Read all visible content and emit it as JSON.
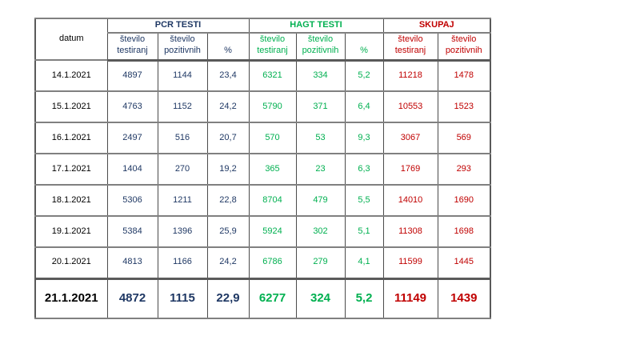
{
  "colors": {
    "pcr": "#1f3864",
    "hagt": "#00b050",
    "skupaj": "#c00000",
    "grid_horizontal": "#808080",
    "grid_vertical": "#4a4a4a"
  },
  "chart_data": {
    "type": "table",
    "header": {
      "datum_label": "datum",
      "groups": [
        {
          "key": "pcr",
          "label": "PCR TESTI",
          "color": "#1f3864",
          "columns": [
            "število testiranj",
            "število pozitivnih",
            "%"
          ]
        },
        {
          "key": "hagt",
          "label": "HAGT TESTI",
          "color": "#00b050",
          "columns": [
            "število testiranj",
            "število pozitivnih",
            "%"
          ]
        },
        {
          "key": "skupaj",
          "label": "SKUPAJ",
          "color": "#c00000",
          "columns": [
            "število testiranj",
            "število pozitivnih"
          ]
        }
      ]
    },
    "columns": [
      "datum",
      "PCR število testiranj",
      "PCR število pozitivnih",
      "PCR %",
      "HAGT število testiranj",
      "HAGT število pozitivnih",
      "HAGT %",
      "SKUPAJ število testiranj",
      "SKUPAJ število pozitivnih"
    ],
    "rows": [
      {
        "date": "14.1.2021",
        "pcr": [
          "4897",
          "1144",
          "23,4"
        ],
        "hagt": [
          "6321",
          "334",
          "5,2"
        ],
        "skupaj": [
          "11218",
          "1478"
        ],
        "total": false
      },
      {
        "date": "15.1.2021",
        "pcr": [
          "4763",
          "1152",
          "24,2"
        ],
        "hagt": [
          "5790",
          "371",
          "6,4"
        ],
        "skupaj": [
          "10553",
          "1523"
        ],
        "total": false
      },
      {
        "date": "16.1.2021",
        "pcr": [
          "2497",
          "516",
          "20,7"
        ],
        "hagt": [
          "570",
          "53",
          "9,3"
        ],
        "skupaj": [
          "3067",
          "569"
        ],
        "total": false
      },
      {
        "date": "17.1.2021",
        "pcr": [
          "1404",
          "270",
          "19,2"
        ],
        "hagt": [
          "365",
          "23",
          "6,3"
        ],
        "skupaj": [
          "1769",
          "293"
        ],
        "total": false
      },
      {
        "date": "18.1.2021",
        "pcr": [
          "5306",
          "1211",
          "22,8"
        ],
        "hagt": [
          "8704",
          "479",
          "5,5"
        ],
        "skupaj": [
          "14010",
          "1690"
        ],
        "total": false
      },
      {
        "date": "19.1.2021",
        "pcr": [
          "5384",
          "1396",
          "25,9"
        ],
        "hagt": [
          "5924",
          "302",
          "5,1"
        ],
        "skupaj": [
          "11308",
          "1698"
        ],
        "total": false
      },
      {
        "date": "20.1.2021",
        "pcr": [
          "4813",
          "1166",
          "24,2"
        ],
        "hagt": [
          "6786",
          "279",
          "4,1"
        ],
        "skupaj": [
          "11599",
          "1445"
        ],
        "total": false
      },
      {
        "date": "21.1.2021",
        "pcr": [
          "4872",
          "1115",
          "22,9"
        ],
        "hagt": [
          "6277",
          "324",
          "5,2"
        ],
        "skupaj": [
          "11149",
          "1439"
        ],
        "total": true
      }
    ]
  }
}
